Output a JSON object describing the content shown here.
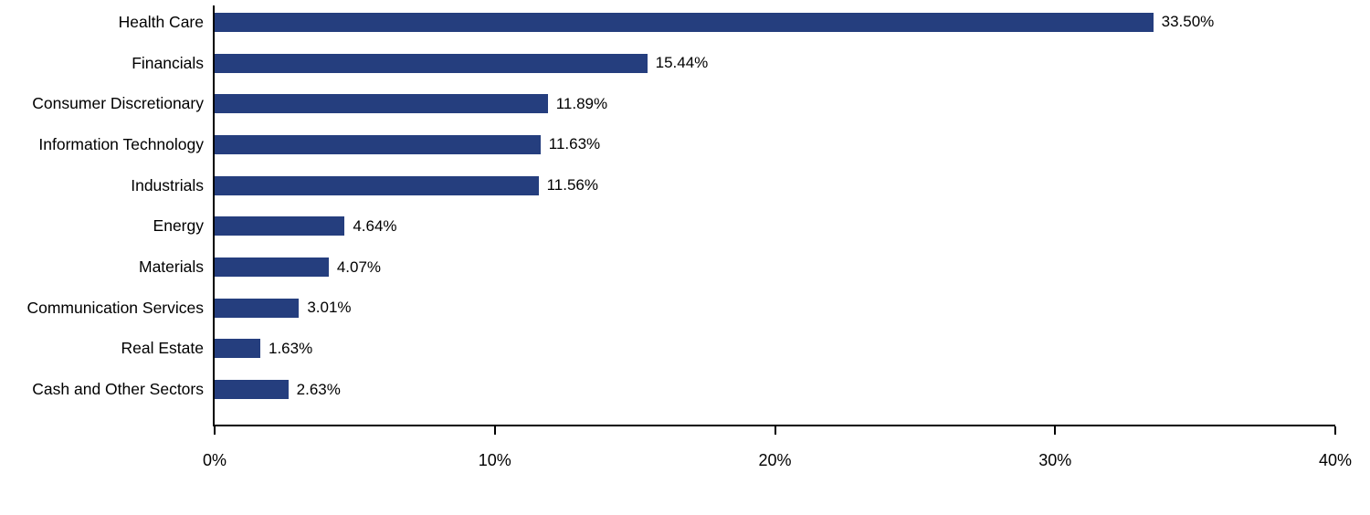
{
  "chart_data": {
    "type": "bar",
    "orientation": "horizontal",
    "title": "",
    "xlabel": "",
    "ylabel": "",
    "categories": [
      "Health Care",
      "Financials",
      "Consumer Discretionary",
      "Information Technology",
      "Industrials",
      "Energy",
      "Materials",
      "Communication Services",
      "Real Estate",
      "Cash and Other Sectors"
    ],
    "values": [
      33.5,
      15.44,
      11.89,
      11.63,
      11.56,
      4.64,
      4.07,
      3.01,
      1.63,
      2.63
    ],
    "value_labels": [
      "33.50%",
      "15.44%",
      "11.89%",
      "11.63%",
      "11.56%",
      "4.64%",
      "4.07%",
      "3.01%",
      "1.63%",
      "2.63%"
    ],
    "xlim": [
      0,
      40
    ],
    "x_tick_values": [
      0,
      10,
      20,
      30,
      40
    ],
    "x_tick_labels": [
      "0%",
      "10%",
      "20%",
      "30%",
      "40%"
    ],
    "bar_color": "#253e7e",
    "axis_color": "#000000",
    "grid": false,
    "legend": false
  }
}
